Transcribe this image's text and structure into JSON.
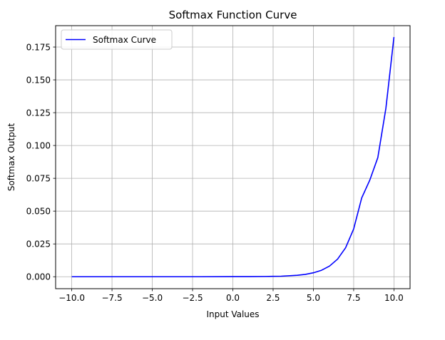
{
  "chart_data": {
    "type": "line",
    "title": "Softmax Function Curve",
    "xlabel": "Input Values",
    "ylabel": "Softmax Output",
    "xlim": [
      -11,
      11
    ],
    "ylim": [
      -0.0091,
      0.1913
    ],
    "grid": true,
    "legend_position": "upper-left",
    "x_ticks": [
      -10,
      -7.5,
      -5,
      -2.5,
      0,
      2.5,
      5,
      7.5,
      10
    ],
    "x_tick_labels": [
      "−10.0",
      "−7.5",
      "−5.0",
      "−2.5",
      "0.0",
      "2.5",
      "5.0",
      "7.5",
      "10.0"
    ],
    "y_ticks": [
      0,
      0.025,
      0.05,
      0.075,
      0.1,
      0.125,
      0.15,
      0.175
    ],
    "y_tick_labels": [
      "0.000",
      "0.025",
      "0.050",
      "0.075",
      "0.100",
      "0.125",
      "0.150",
      "0.175"
    ],
    "series": [
      {
        "name": "Softmax Curve",
        "color": "#0000ff",
        "x": [
          -10,
          -8,
          -6,
          -4,
          -2,
          0,
          1,
          2,
          3,
          4,
          4.5,
          5,
          5.5,
          6,
          6.5,
          7,
          7.5,
          8,
          8.5,
          9,
          9.5,
          10
        ],
        "y": [
          0.0,
          0.0,
          0.0,
          0.0,
          0.0,
          0.0001,
          0.0001,
          0.0002,
          0.0004,
          0.0011,
          0.0018,
          0.003,
          0.0049,
          0.0081,
          0.0134,
          0.0221,
          0.0364,
          0.0601,
          0.0736,
          0.0908,
          0.1283,
          0.1826
        ]
      }
    ]
  }
}
